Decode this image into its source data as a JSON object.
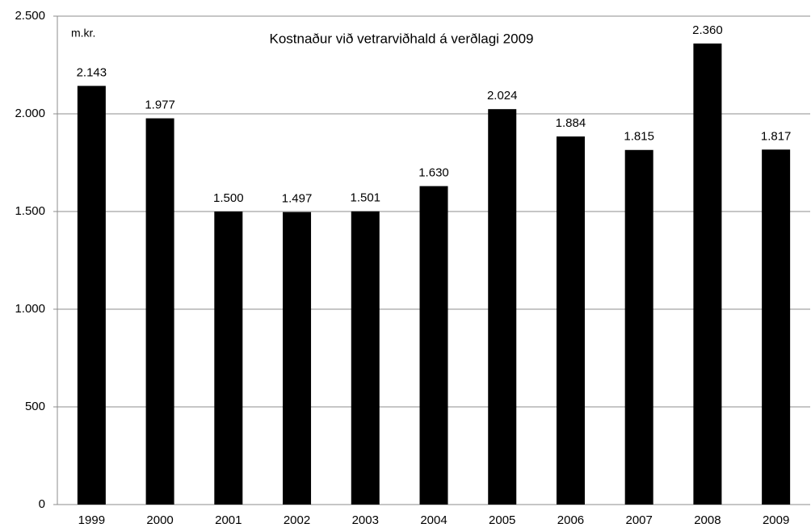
{
  "chart_data": {
    "type": "bar",
    "title": "Kostnaður við vetrarviðhald á verðlagi 2009",
    "y_label": "m.kr.",
    "categories": [
      "1999",
      "2000",
      "2001",
      "2002",
      "2003",
      "2004",
      "2005",
      "2006",
      "2007",
      "2008",
      "2009"
    ],
    "values": [
      2143,
      1977,
      1500,
      1497,
      1501,
      1630,
      2024,
      1884,
      1815,
      2360,
      1817
    ],
    "value_labels": [
      "2.143",
      "1.977",
      "1.500",
      "1.497",
      "1.501",
      "1.630",
      "2.024",
      "1.884",
      "1.815",
      "2.360",
      "1.817"
    ],
    "color": "#000000",
    "ylim": [
      0,
      2500
    ],
    "yticks": [
      0,
      500,
      {
        "value": 1000,
        "label": "1.000"
      },
      {
        "value": 1500,
        "label": "1.500"
      },
      {
        "value": 2000,
        "label": "2.000"
      },
      {
        "value": 2500,
        "label": "2.500"
      }
    ],
    "grid": true
  }
}
